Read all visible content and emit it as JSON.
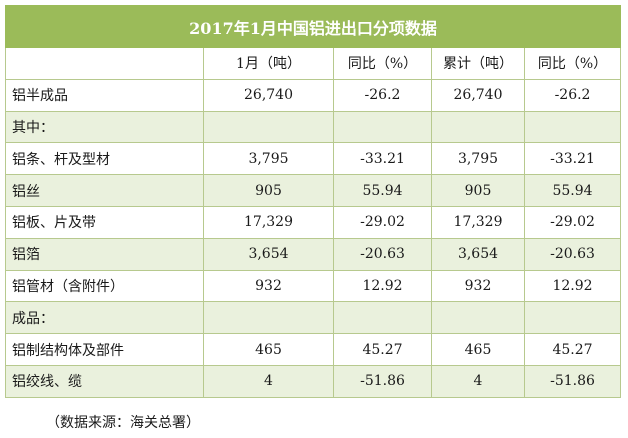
{
  "title": "2017年1月中国铝进出口分项数据",
  "headers": [
    "",
    "1月（吨）",
    "同比（%）",
    "累计（吨）",
    "同比（%）"
  ],
  "rows": [
    {
      "name": "铝半成品",
      "month": "26,740",
      "yoy1": "-26.2",
      "cumulative": "26,740",
      "yoy2": "-26.2"
    },
    {
      "name": "其中：",
      "month": "",
      "yoy1": "",
      "cumulative": "",
      "yoy2": ""
    },
    {
      "name": "铝条、杆及型材",
      "month": "3,795",
      "yoy1": "-33.21",
      "cumulative": "3,795",
      "yoy2": "-33.21"
    },
    {
      "name": "铝丝",
      "month": "905",
      "yoy1": "55.94",
      "cumulative": "905",
      "yoy2": "55.94"
    },
    {
      "name": "铝板、片及带",
      "month": "17,329",
      "yoy1": "-29.02",
      "cumulative": "17,329",
      "yoy2": "-29.02"
    },
    {
      "name": "铝箔",
      "month": "3,654",
      "yoy1": "-20.63",
      "cumulative": "3,654",
      "yoy2": "-20.63"
    },
    {
      "name": "铝管材（含附件）",
      "month": "932",
      "yoy1": "12.92",
      "cumulative": "932",
      "yoy2": "12.92"
    },
    {
      "name": "成品：",
      "month": "",
      "yoy1": "",
      "cumulative": "",
      "yoy2": ""
    },
    {
      "name": "铝制结构体及部件",
      "month": "465",
      "yoy1": "45.27",
      "cumulative": "465",
      "yoy2": "45.27"
    },
    {
      "name": "铝绞线、缆",
      "month": "4",
      "yoy1": "-51.86",
      "cumulative": "4",
      "yoy2": "-51.86"
    }
  ],
  "source": "（数据来源：海关总署）",
  "colors": {
    "header_green": "#9bbb59",
    "light_green": "#eaf1dd",
    "border": "#b7c98e"
  }
}
